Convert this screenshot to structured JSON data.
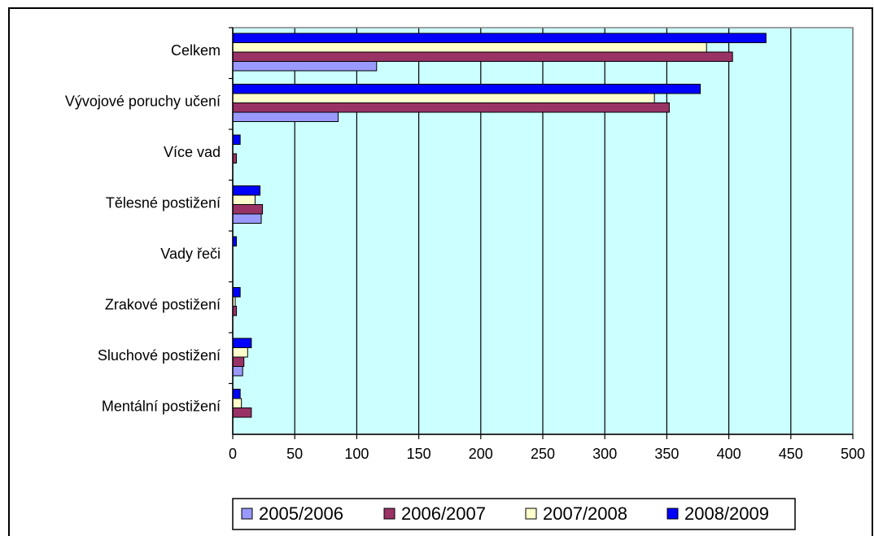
{
  "chart_data": {
    "type": "bar",
    "orientation": "horizontal",
    "categories": [
      "Celkem",
      "Vývojové poruchy učení",
      "Více vad",
      "Tělesné postižení",
      "Vady řeči",
      "Zrakové postižení",
      "Sluchové postižení",
      "Mentální postižení"
    ],
    "series": [
      {
        "name": "2005/2006",
        "color": "#9999ff",
        "values": [
          116,
          85,
          0,
          23,
          0,
          0,
          8,
          0
        ]
      },
      {
        "name": "2006/2007",
        "color": "#993366",
        "values": [
          403,
          352,
          3,
          24,
          0,
          3,
          9,
          15
        ]
      },
      {
        "name": "2007/2008",
        "color": "#ffffcc",
        "values": [
          382,
          340,
          0,
          18,
          0,
          2,
          12,
          7
        ]
      },
      {
        "name": "2008/2009",
        "color": "#0000ff",
        "values": [
          430,
          377,
          6,
          22,
          3,
          6,
          15,
          6
        ]
      }
    ],
    "xlim": [
      0,
      500
    ],
    "xticks": [
      "0",
      "50",
      "100",
      "150",
      "200",
      "250",
      "300",
      "350",
      "400",
      "450",
      "500"
    ],
    "grid": "vertical",
    "plot_background": "#ccffff",
    "legend_position": "bottom"
  }
}
